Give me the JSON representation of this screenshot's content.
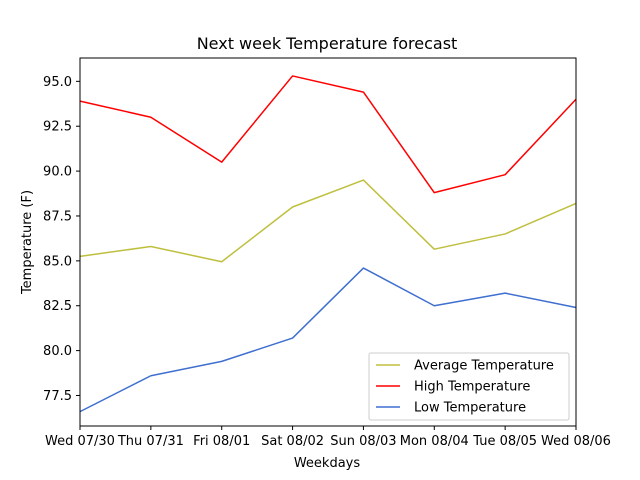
{
  "chart_data": {
    "type": "line",
    "title": "Next week Temperature forecast",
    "xlabel": "Weekdays",
    "ylabel": "Temperature (F)",
    "categories": [
      "Wed 07/30",
      "Thu 07/31",
      "Fri 08/01",
      "Sat 08/02",
      "Sun 08/03",
      "Mon 08/04",
      "Tue 08/05",
      "Wed 08/06"
    ],
    "ylim": [
      75.8,
      96.3
    ],
    "yticks": [
      77.5,
      80.0,
      82.5,
      85.0,
      87.5,
      90.0,
      92.5,
      95.0
    ],
    "ytick_labels": [
      "77.5",
      "80.0",
      "82.5",
      "85.0",
      "87.5",
      "90.0",
      "92.5",
      "95.0"
    ],
    "grid": false,
    "legend_position": "lower-right",
    "series": [
      {
        "name": "Average Temperature",
        "color": "#bfbf3f",
        "values": [
          85.25,
          85.8,
          84.95,
          88.0,
          89.5,
          85.65,
          86.5,
          88.2
        ]
      },
      {
        "name": "High Temperature",
        "color": "#ff0000",
        "values": [
          93.9,
          93.0,
          90.5,
          95.3,
          94.4,
          88.8,
          89.8,
          94.0
        ]
      },
      {
        "name": "Low Temperature",
        "color": "#3f6fcf",
        "values": [
          76.6,
          78.6,
          79.4,
          80.7,
          84.6,
          82.5,
          83.2,
          82.4
        ]
      }
    ]
  }
}
